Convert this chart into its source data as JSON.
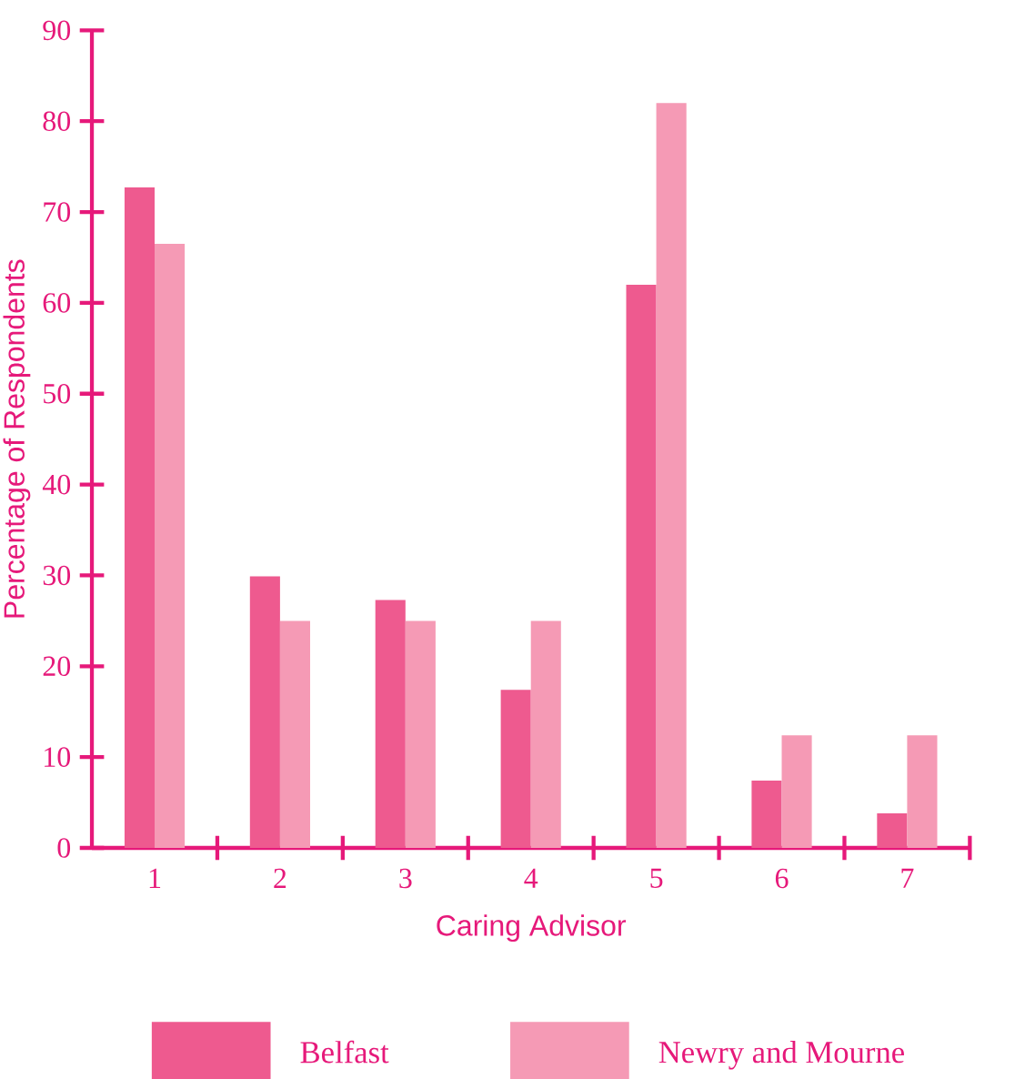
{
  "chart_data": {
    "type": "bar",
    "xlabel": "Caring Advisor",
    "ylabel": "Percentage of Respondents",
    "categories": [
      "1",
      "2",
      "3",
      "4",
      "5",
      "6",
      "7"
    ],
    "series": [
      {
        "name": "Belfast",
        "color": "#ee5a8f",
        "values": [
          72.7,
          29.9,
          27.3,
          17.4,
          62,
          7.4,
          3.8
        ]
      },
      {
        "name": "Newry and Mourne",
        "color": "#f59ab5",
        "values": [
          66.5,
          25,
          25,
          25,
          82,
          12.4,
          12.4
        ]
      }
    ],
    "ylim": [
      0,
      90
    ],
    "yticks": [
      0,
      10,
      20,
      30,
      40,
      50,
      60,
      70,
      80,
      90
    ],
    "grid": false,
    "legend": "bottom"
  }
}
